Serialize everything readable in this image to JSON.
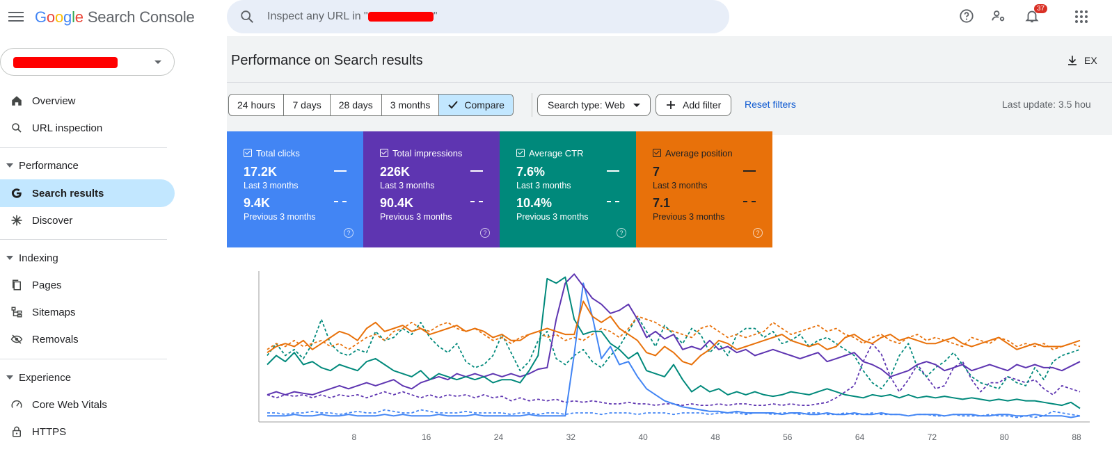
{
  "app": {
    "logo_letters": [
      "G",
      "o",
      "o",
      "g",
      "l",
      "e"
    ],
    "product": "Search Console",
    "search_placeholder_prefix": "Inspect any URL in \"",
    "search_placeholder_suffix": "\"",
    "notifications_count": "37"
  },
  "sidebar": {
    "items": [
      {
        "label": "Overview",
        "icon": "home-icon"
      },
      {
        "label": "URL inspection",
        "icon": "search-icon"
      }
    ],
    "performance": {
      "section": "Performance",
      "items": [
        {
          "label": "Search results",
          "icon": "google-g-icon",
          "active": true
        },
        {
          "label": "Discover",
          "icon": "asterisk-icon"
        }
      ]
    },
    "indexing": {
      "section": "Indexing",
      "items": [
        {
          "label": "Pages",
          "icon": "pages-icon"
        },
        {
          "label": "Sitemaps",
          "icon": "sitemap-icon"
        },
        {
          "label": "Removals",
          "icon": "eye-off-icon"
        }
      ]
    },
    "experience": {
      "section": "Experience",
      "items": [
        {
          "label": "Core Web Vitals",
          "icon": "gauge-icon"
        },
        {
          "label": "HTTPS",
          "icon": "lock-icon"
        }
      ]
    }
  },
  "main": {
    "title": "Performance on Search results",
    "export_label": "EX",
    "ranges": [
      "24 hours",
      "7 days",
      "28 days",
      "3 months",
      "Compare"
    ],
    "selected_range": "Compare",
    "search_type": "Search type: Web",
    "add_filter": "Add filter",
    "reset_filters": "Reset filters",
    "last_update": "Last update: 3.5 hou"
  },
  "cards": [
    {
      "label": "Total clicks",
      "value": "17.2K",
      "value_period": "Last 3 months",
      "prev": "9.4K",
      "prev_period": "Previous 3 months",
      "color": "#4285f4"
    },
    {
      "label": "Total impressions",
      "value": "226K",
      "value_period": "Last 3 months",
      "prev": "90.4K",
      "prev_period": "Previous 3 months",
      "color": "#5e35b1"
    },
    {
      "label": "Average CTR",
      "value": "7.6%",
      "value_period": "Last 3 months",
      "prev": "10.4%",
      "prev_period": "Previous 3 months",
      "color": "#00897b"
    },
    {
      "label": "Average position",
      "value": "7",
      "value_period": "Last 3 months",
      "prev": "7.1",
      "prev_period": "Previous 3 months",
      "color": "#e8710a"
    }
  ],
  "chart_data": {
    "type": "line",
    "x": [
      1,
      2,
      3,
      4,
      5,
      6,
      7,
      8,
      9,
      10,
      11,
      12,
      13,
      14,
      15,
      16,
      17,
      18,
      19,
      20,
      21,
      22,
      23,
      24,
      25,
      26,
      27,
      28,
      29,
      30,
      31,
      32,
      33,
      34,
      35,
      36,
      37,
      38,
      39,
      40,
      41,
      42,
      43,
      44,
      45,
      46,
      47,
      48,
      49,
      50,
      51,
      52,
      53,
      54,
      55,
      56,
      57,
      58,
      59,
      60,
      61,
      62,
      63,
      64,
      65,
      66,
      67,
      68,
      69,
      70,
      71,
      72,
      73,
      74,
      75,
      76,
      77,
      78,
      79,
      80,
      81,
      82,
      83,
      84,
      85,
      86,
      87,
      88,
      89,
      90,
      91
    ],
    "xticks": [
      8,
      16,
      24,
      32,
      40,
      48,
      56,
      64,
      72,
      80,
      88
    ],
    "ylim": [
      0,
      100
    ],
    "series": [
      {
        "key": "clicks",
        "color": "#4285f4",
        "dashed": false,
        "values": [
          4,
          4,
          4,
          5,
          4,
          4,
          5,
          4,
          4,
          5,
          4,
          4,
          4,
          5,
          4,
          5,
          4,
          4,
          4,
          5,
          4,
          4,
          4,
          5,
          4,
          4,
          4,
          4,
          4,
          5,
          4,
          4,
          4,
          4,
          45,
          92,
          70,
          42,
          50,
          38,
          40,
          30,
          22,
          18,
          14,
          12,
          10,
          9,
          8,
          7,
          7,
          6,
          7,
          6,
          6,
          6,
          6,
          5,
          6,
          6,
          5,
          5,
          6,
          5,
          5,
          6,
          5,
          5,
          6,
          5,
          5,
          4,
          5,
          5,
          5,
          4,
          5,
          5,
          5,
          4,
          4,
          5,
          5,
          4,
          4,
          5,
          4,
          4,
          4,
          3,
          4
        ]
      },
      {
        "key": "clicks-prev",
        "color": "#4285f4",
        "dashed": true,
        "values": [
          6,
          6,
          5,
          6,
          6,
          7,
          6,
          6,
          5,
          6,
          7,
          6,
          6,
          8,
          7,
          6,
          6,
          8,
          7,
          6,
          6,
          6,
          7,
          6,
          6,
          6,
          6,
          5,
          6,
          6,
          5,
          6,
          6,
          5,
          6,
          6,
          6,
          5,
          6,
          6,
          6,
          5,
          6,
          6,
          6,
          5,
          6,
          6,
          6,
          5,
          6,
          6,
          6,
          5,
          6,
          6,
          5,
          6,
          6,
          5,
          6,
          6,
          5,
          5,
          6,
          5,
          5,
          6,
          5,
          5,
          5,
          4,
          5,
          5,
          4,
          4,
          5,
          4,
          4,
          4,
          5,
          4,
          4,
          3,
          4,
          3,
          4,
          7,
          6,
          5,
          4
        ]
      },
      {
        "key": "impressions",
        "color": "#5e35b1",
        "dashed": false,
        "values": [
          18,
          20,
          18,
          20,
          19,
          18,
          20,
          22,
          24,
          22,
          24,
          26,
          24,
          26,
          28,
          24,
          22,
          26,
          28,
          30,
          28,
          32,
          30,
          32,
          30,
          32,
          30,
          32,
          30,
          32,
          35,
          36,
          68,
          92,
          98,
          90,
          82,
          78,
          72,
          74,
          78,
          68,
          56,
          60,
          55,
          58,
          48,
          50,
          48,
          54,
          48,
          50,
          46,
          48,
          44,
          46,
          48,
          46,
          44,
          42,
          44,
          46,
          40,
          42,
          44,
          46,
          40,
          38,
          35,
          30,
          32,
          34,
          38,
          40,
          38,
          34,
          36,
          38,
          34,
          36,
          38,
          36,
          34,
          38,
          36,
          38,
          36,
          36,
          34,
          37,
          40
        ]
      },
      {
        "key": "impressions-prev",
        "color": "#5e35b1",
        "dashed": true,
        "values": [
          18,
          16,
          18,
          17,
          18,
          16,
          18,
          16,
          18,
          17,
          18,
          16,
          18,
          20,
          18,
          20,
          18,
          16,
          18,
          16,
          18,
          17,
          18,
          16,
          18,
          16,
          17,
          14,
          16,
          14,
          15,
          14,
          15,
          13,
          14,
          13,
          14,
          13,
          12,
          12,
          13,
          12,
          12,
          11,
          12,
          12,
          11,
          12,
          11,
          11,
          12,
          11,
          12,
          12,
          11,
          11,
          12,
          11,
          12,
          11,
          11,
          12,
          13,
          16,
          20,
          24,
          40,
          52,
          45,
          30,
          20,
          28,
          38,
          30,
          22,
          24,
          36,
          40,
          28,
          20,
          26,
          26,
          30,
          28,
          26,
          28,
          22,
          18,
          24,
          22,
          20
        ]
      },
      {
        "key": "ctr",
        "color": "#00897b",
        "dashed": false,
        "values": [
          38,
          44,
          40,
          46,
          38,
          40,
          36,
          34,
          38,
          36,
          34,
          40,
          42,
          38,
          34,
          32,
          30,
          34,
          28,
          32,
          30,
          28,
          30,
          28,
          30,
          26,
          28,
          28,
          26,
          34,
          44,
          95,
          92,
          96,
          68,
          58,
          60,
          60,
          52,
          48,
          42,
          46,
          34,
          32,
          30,
          38,
          28,
          20,
          24,
          20,
          22,
          18,
          20,
          18,
          20,
          18,
          17,
          18,
          20,
          19,
          18,
          20,
          22,
          20,
          18,
          17,
          16,
          18,
          17,
          18,
          16,
          18,
          16,
          17,
          16,
          17,
          16,
          15,
          16,
          15,
          14,
          15,
          14,
          15,
          14,
          14,
          13,
          12,
          11,
          13,
          9
        ]
      },
      {
        "key": "ctr-prev",
        "color": "#00897b",
        "dashed": true,
        "values": [
          44,
          52,
          44,
          48,
          42,
          52,
          68,
          52,
          46,
          44,
          48,
          46,
          60,
          54,
          56,
          62,
          58,
          66,
          56,
          50,
          46,
          52,
          40,
          36,
          38,
          44,
          58,
          46,
          34,
          40,
          54,
          60,
          42,
          38,
          44,
          48,
          40,
          36,
          44,
          50,
          60,
          70,
          60,
          50,
          64,
          58,
          52,
          62,
          58,
          46,
          52,
          44,
          58,
          62,
          62,
          56,
          60,
          52,
          54,
          58,
          50,
          54,
          56,
          52,
          48,
          44,
          34,
          26,
          22,
          30,
          44,
          52,
          36,
          30,
          36,
          40,
          46,
          38,
          30,
          26,
          24,
          22,
          30,
          26,
          24,
          36,
          28,
          40,
          44,
          46,
          48
        ]
      },
      {
        "key": "position",
        "color": "#e8710a",
        "dashed": false,
        "values": [
          46,
          50,
          52,
          50,
          54,
          48,
          52,
          56,
          60,
          58,
          54,
          62,
          66,
          60,
          62,
          64,
          60,
          62,
          58,
          60,
          62,
          64,
          60,
          62,
          60,
          56,
          58,
          54,
          54,
          58,
          60,
          62,
          60,
          58,
          58,
          80,
          70,
          66,
          70,
          62,
          58,
          54,
          46,
          44,
          50,
          46,
          40,
          38,
          44,
          48,
          54,
          52,
          48,
          50,
          52,
          54,
          56,
          58,
          54,
          52,
          50,
          52,
          48,
          50,
          56,
          58,
          54,
          52,
          56,
          58,
          54,
          56,
          54,
          52,
          52,
          54,
          56,
          52,
          50,
          52,
          54,
          56,
          52,
          48,
          50,
          52,
          50,
          50,
          50,
          52,
          54
        ]
      },
      {
        "key": "position-prev",
        "color": "#e8710a",
        "dashed": true,
        "values": [
          48,
          52,
          50,
          54,
          50,
          52,
          54,
          50,
          52,
          48,
          52,
          56,
          58,
          54,
          60,
          62,
          66,
          62,
          60,
          64,
          66,
          62,
          60,
          62,
          58,
          54,
          56,
          52,
          56,
          58,
          60,
          56,
          58,
          54,
          56,
          54,
          58,
          62,
          60,
          56,
          62,
          70,
          68,
          66,
          62,
          60,
          58,
          56,
          62,
          64,
          60,
          56,
          58,
          56,
          58,
          60,
          66,
          62,
          58,
          60,
          62,
          64,
          60,
          62,
          58,
          56,
          52,
          56,
          58,
          54,
          52,
          56,
          58,
          54,
          56,
          54,
          52,
          50,
          56,
          54,
          52,
          56,
          54,
          50,
          52,
          50,
          52,
          48,
          50,
          52,
          50
        ]
      }
    ]
  }
}
